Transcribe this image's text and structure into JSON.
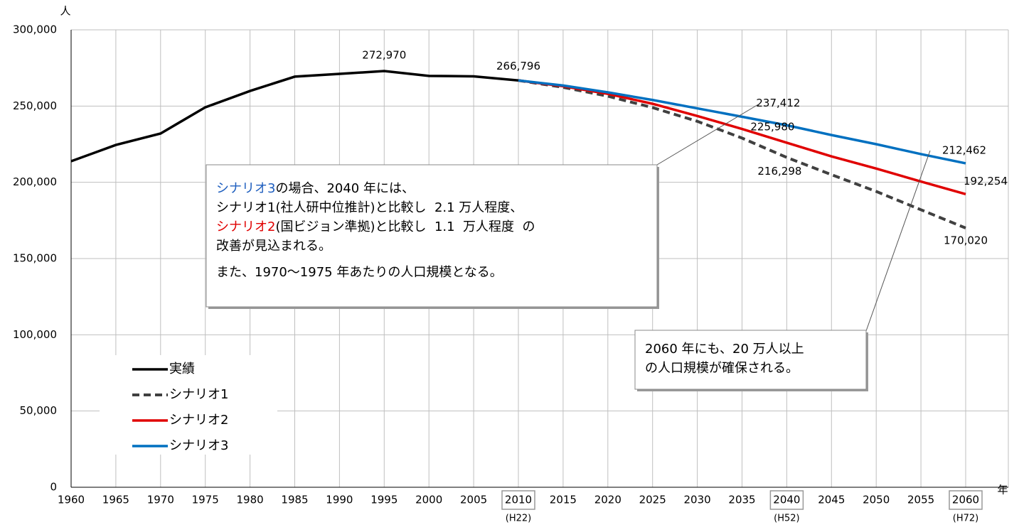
{
  "chart_data": {
    "type": "line",
    "y_unit": "人",
    "x_unit": "年",
    "x": [
      1960,
      1965,
      1970,
      1975,
      1980,
      1985,
      1990,
      1995,
      2000,
      2005,
      2010,
      2015,
      2020,
      2025,
      2030,
      2035,
      2040,
      2045,
      2050,
      2055,
      2060
    ],
    "xlim": [
      1960,
      2060
    ],
    "ylim": [
      0,
      300000
    ],
    "yticks": [
      0,
      {
        "value": 50000,
        "label": "50,000"
      },
      {
        "value": 100000,
        "label": "100,000"
      },
      {
        "value": 150000,
        "label": "150,000"
      },
      {
        "value": 200000,
        "label": "200,000"
      },
      {
        "value": 250000,
        "label": "250,000"
      },
      {
        "value": 300000,
        "label": "300,000"
      }
    ],
    "grid": true,
    "era_labels": [
      {
        "x": 2010,
        "label": "(H22)"
      },
      {
        "x": 2040,
        "label": "(H52)"
      },
      {
        "x": 2060,
        "label": "(H72)"
      }
    ],
    "series": [
      {
        "name": "実績",
        "color": "#000000",
        "dash": false,
        "values": [
          213800,
          224500,
          232000,
          249200,
          259900,
          269300,
          271100,
          272970,
          269800,
          269500,
          266796,
          null,
          null,
          null,
          null,
          null,
          null,
          null,
          null,
          null,
          null
        ],
        "value_labels": [
          null,
          null,
          null,
          null,
          null,
          null,
          null,
          "272,970",
          null,
          null,
          "266,796",
          null,
          null,
          null,
          null,
          null,
          null,
          null,
          null,
          null,
          null
        ]
      },
      {
        "name": "シナリオ1",
        "color": "#404040",
        "dash": true,
        "values": [
          null,
          null,
          null,
          null,
          null,
          null,
          null,
          null,
          null,
          null,
          266796,
          262300,
          256500,
          249000,
          240000,
          229000,
          216298,
          205000,
          194000,
          182000,
          170020
        ],
        "value_labels": [
          null,
          null,
          null,
          null,
          null,
          null,
          null,
          null,
          null,
          null,
          null,
          null,
          null,
          null,
          null,
          null,
          "216,298",
          null,
          null,
          null,
          "170,020"
        ]
      },
      {
        "name": "シナリオ2",
        "color": "#e00000",
        "dash": false,
        "values": [
          null,
          null,
          null,
          null,
          null,
          null,
          null,
          null,
          null,
          null,
          266796,
          263000,
          258000,
          251500,
          243500,
          235000,
          225980,
          217000,
          209000,
          200500,
          192254
        ],
        "value_labels": [
          null,
          null,
          null,
          null,
          null,
          null,
          null,
          null,
          null,
          null,
          null,
          null,
          null,
          null,
          null,
          null,
          "225,980",
          null,
          null,
          null,
          "192,254"
        ]
      },
      {
        "name": "シナリオ3",
        "color": "#0070c0",
        "dash": false,
        "values": [
          null,
          null,
          null,
          null,
          null,
          null,
          null,
          null,
          null,
          null,
          266796,
          263500,
          259000,
          254000,
          248500,
          243000,
          237412,
          231000,
          225000,
          218500,
          212462
        ],
        "value_labels": [
          null,
          null,
          null,
          null,
          null,
          null,
          null,
          null,
          null,
          null,
          null,
          null,
          null,
          null,
          null,
          null,
          "237,412",
          null,
          null,
          null,
          "212,462"
        ]
      }
    ],
    "annotations": [
      {
        "lines": [
          [
            {
              "text": "シナリオ3",
              "color": "#1f5fbf"
            },
            {
              "text": "の場合、2040 年には、"
            }
          ],
          [
            {
              "text": "シナリオ1(社人研中位推計)と比較し  2.1 万人程度、"
            }
          ],
          [
            {
              "text": "シナリオ2",
              "color": "#e00000"
            },
            {
              "text": "(国ビジョン準拠)と比較し  1.1  万人程度  の"
            }
          ],
          [
            {
              "text": "改善が見込まれる。"
            }
          ],
          [
            {
              "text": "また、1970～1975 年あたりの人口規模となる。"
            }
          ]
        ]
      },
      {
        "lines": [
          [
            {
              "text": "2060 年にも、20 万人以上"
            }
          ],
          [
            {
              "text": "の人口規模が確保される。"
            }
          ]
        ]
      }
    ]
  }
}
